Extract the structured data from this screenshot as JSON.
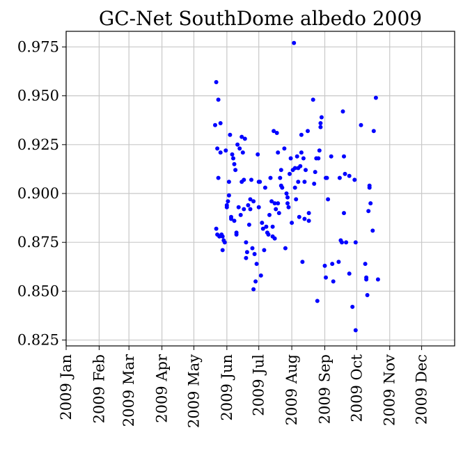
{
  "chart_data": {
    "type": "scatter",
    "title": "GC-Net SouthDome albedo 2009",
    "xlabel": "",
    "ylabel": "",
    "xlim": [
      "2009-01-01",
      "2010-01-01"
    ],
    "ylim": [
      0.822,
      0.983
    ],
    "grid": true,
    "marker_color": "#0000ff",
    "x_tick_labels": [
      "2009 Jan",
      "2009 Feb",
      "2009 Mar",
      "2009 Apr",
      "2009 May",
      "2009 Jun",
      "2009 Jul",
      "2009 Aug",
      "2009 Sep",
      "2009 Oct",
      "2009 Nov",
      "2009 Dec"
    ],
    "x_tick_dates": [
      "2009-01-01",
      "2009-02-01",
      "2009-03-01",
      "2009-04-01",
      "2009-05-01",
      "2009-06-01",
      "2009-07-01",
      "2009-08-01",
      "2009-09-01",
      "2009-10-01",
      "2009-11-01",
      "2009-12-01"
    ],
    "y_tick_labels": [
      "0.825",
      "0.850",
      "0.875",
      "0.900",
      "0.925",
      "0.950",
      "0.975"
    ],
    "y_ticks": [
      0.825,
      0.85,
      0.875,
      0.9,
      0.925,
      0.95,
      0.975
    ],
    "series": [
      {
        "points": [
          [
            "2009-05-21",
            0.935
          ],
          [
            "2009-05-22",
            0.957
          ],
          [
            "2009-05-22",
            0.882
          ],
          [
            "2009-05-23",
            0.879
          ],
          [
            "2009-05-23",
            0.923
          ],
          [
            "2009-05-24",
            0.948
          ],
          [
            "2009-05-24",
            0.908
          ],
          [
            "2009-05-25",
            0.878
          ],
          [
            "2009-05-26",
            0.936
          ],
          [
            "2009-05-26",
            0.921
          ],
          [
            "2009-05-27",
            0.879
          ],
          [
            "2009-05-28",
            0.878
          ],
          [
            "2009-05-28",
            0.871
          ],
          [
            "2009-05-29",
            0.876
          ],
          [
            "2009-05-30",
            0.875
          ],
          [
            "2009-05-31",
            0.922
          ],
          [
            "2009-06-01",
            0.893
          ],
          [
            "2009-06-01",
            0.894
          ],
          [
            "2009-06-02",
            0.896
          ],
          [
            "2009-06-03",
            0.906
          ],
          [
            "2009-06-03",
            0.899
          ],
          [
            "2009-06-04",
            0.93
          ],
          [
            "2009-06-05",
            0.887
          ],
          [
            "2009-06-05",
            0.888
          ],
          [
            "2009-06-06",
            0.92
          ],
          [
            "2009-06-07",
            0.918
          ],
          [
            "2009-06-08",
            0.886
          ],
          [
            "2009-06-08",
            0.915
          ],
          [
            "2009-06-09",
            0.912
          ],
          [
            "2009-06-10",
            0.88
          ],
          [
            "2009-06-10",
            0.879
          ],
          [
            "2009-06-11",
            0.925
          ],
          [
            "2009-06-12",
            0.893
          ],
          [
            "2009-06-13",
            0.923
          ],
          [
            "2009-06-14",
            0.889
          ],
          [
            "2009-06-15",
            0.929
          ],
          [
            "2009-06-15",
            0.906
          ],
          [
            "2009-06-16",
            0.921
          ],
          [
            "2009-06-17",
            0.892
          ],
          [
            "2009-06-17",
            0.907
          ],
          [
            "2009-06-18",
            0.928
          ],
          [
            "2009-06-19",
            0.875
          ],
          [
            "2009-06-19",
            0.867
          ],
          [
            "2009-06-20",
            0.87
          ],
          [
            "2009-06-21",
            0.894
          ],
          [
            "2009-06-22",
            0.884
          ],
          [
            "2009-06-23",
            0.897
          ],
          [
            "2009-06-23",
            0.892
          ],
          [
            "2009-06-24",
            0.907
          ],
          [
            "2009-06-25",
            0.872
          ],
          [
            "2009-06-26",
            0.851
          ],
          [
            "2009-06-26",
            0.896
          ],
          [
            "2009-06-27",
            0.869
          ],
          [
            "2009-06-28",
            0.855
          ],
          [
            "2009-06-29",
            0.864
          ],
          [
            "2009-06-30",
            0.92
          ],
          [
            "2009-07-01",
            0.893
          ],
          [
            "2009-07-01",
            0.906
          ],
          [
            "2009-07-02",
            0.906
          ],
          [
            "2009-07-03",
            0.858
          ],
          [
            "2009-07-04",
            0.885
          ],
          [
            "2009-07-05",
            0.882
          ],
          [
            "2009-07-06",
            0.871
          ],
          [
            "2009-07-07",
            0.903
          ],
          [
            "2009-07-08",
            0.883
          ],
          [
            "2009-07-09",
            0.88
          ],
          [
            "2009-07-10",
            0.879
          ],
          [
            "2009-07-11",
            0.889
          ],
          [
            "2009-07-12",
            0.908
          ],
          [
            "2009-07-13",
            0.896
          ],
          [
            "2009-07-14",
            0.878
          ],
          [
            "2009-07-14",
            0.883
          ],
          [
            "2009-07-15",
            0.932
          ],
          [
            "2009-07-16",
            0.895
          ],
          [
            "2009-07-16",
            0.877
          ],
          [
            "2009-07-17",
            0.892
          ],
          [
            "2009-07-18",
            0.931
          ],
          [
            "2009-07-19",
            0.895
          ],
          [
            "2009-07-19",
            0.921
          ],
          [
            "2009-07-20",
            0.89
          ],
          [
            "2009-07-21",
            0.908
          ],
          [
            "2009-07-22",
            0.904
          ],
          [
            "2009-07-22",
            0.912
          ],
          [
            "2009-07-23",
            0.903
          ],
          [
            "2009-07-25",
            0.923
          ],
          [
            "2009-07-26",
            0.872
          ],
          [
            "2009-07-27",
            0.9
          ],
          [
            "2009-07-28",
            0.898
          ],
          [
            "2009-07-28",
            0.895
          ],
          [
            "2009-07-29",
            0.893
          ],
          [
            "2009-07-30",
            0.91
          ],
          [
            "2009-07-31",
            0.918
          ],
          [
            "2009-08-01",
            0.885
          ],
          [
            "2009-08-02",
            0.912
          ],
          [
            "2009-08-03",
            0.977
          ],
          [
            "2009-08-04",
            0.913
          ],
          [
            "2009-08-04",
            0.903
          ],
          [
            "2009-08-05",
            0.897
          ],
          [
            "2009-08-06",
            0.919
          ],
          [
            "2009-08-07",
            0.913
          ],
          [
            "2009-08-07",
            0.906
          ],
          [
            "2009-08-08",
            0.888
          ],
          [
            "2009-08-09",
            0.914
          ],
          [
            "2009-08-10",
            0.93
          ],
          [
            "2009-08-10",
            0.921
          ],
          [
            "2009-08-11",
            0.865
          ],
          [
            "2009-08-12",
            0.918
          ],
          [
            "2009-08-13",
            0.906
          ],
          [
            "2009-08-13",
            0.887
          ],
          [
            "2009-08-14",
            0.912
          ],
          [
            "2009-08-16",
            0.932
          ],
          [
            "2009-08-17",
            0.89
          ],
          [
            "2009-08-17",
            0.886
          ],
          [
            "2009-08-21",
            0.948
          ],
          [
            "2009-08-22",
            0.905
          ],
          [
            "2009-08-23",
            0.911
          ],
          [
            "2009-08-24",
            0.918
          ],
          [
            "2009-08-25",
            0.845
          ],
          [
            "2009-08-26",
            0.918
          ],
          [
            "2009-08-27",
            0.922
          ],
          [
            "2009-08-28",
            0.934
          ],
          [
            "2009-08-28",
            0.936
          ],
          [
            "2009-08-29",
            0.939
          ],
          [
            "2009-09-01",
            0.863
          ],
          [
            "2009-09-02",
            0.857
          ],
          [
            "2009-09-02",
            0.908
          ],
          [
            "2009-09-03",
            0.908
          ],
          [
            "2009-09-04",
            0.897
          ],
          [
            "2009-09-07",
            0.919
          ],
          [
            "2009-09-08",
            0.864
          ],
          [
            "2009-09-09",
            0.855
          ],
          [
            "2009-09-14",
            0.865
          ],
          [
            "2009-09-15",
            0.908
          ],
          [
            "2009-09-16",
            0.876
          ],
          [
            "2009-09-17",
            0.875
          ],
          [
            "2009-09-18",
            0.942
          ],
          [
            "2009-09-19",
            0.919
          ],
          [
            "2009-09-19",
            0.89
          ],
          [
            "2009-09-20",
            0.91
          ],
          [
            "2009-09-21",
            0.875
          ],
          [
            "2009-09-24",
            0.909
          ],
          [
            "2009-09-24",
            0.859
          ],
          [
            "2009-09-27",
            0.842
          ],
          [
            "2009-09-29",
            0.907
          ],
          [
            "2009-09-30",
            0.875
          ],
          [
            "2009-09-30",
            0.83
          ],
          [
            "2009-10-05",
            0.935
          ],
          [
            "2009-10-09",
            0.864
          ],
          [
            "2009-10-10",
            0.856
          ],
          [
            "2009-10-10",
            0.857
          ],
          [
            "2009-10-11",
            0.848
          ],
          [
            "2009-10-12",
            0.891
          ],
          [
            "2009-10-13",
            0.904
          ],
          [
            "2009-10-13",
            0.903
          ],
          [
            "2009-10-14",
            0.895
          ],
          [
            "2009-10-16",
            0.881
          ],
          [
            "2009-10-17",
            0.932
          ],
          [
            "2009-10-19",
            0.949
          ],
          [
            "2009-10-21",
            0.856
          ]
        ]
      }
    ]
  }
}
